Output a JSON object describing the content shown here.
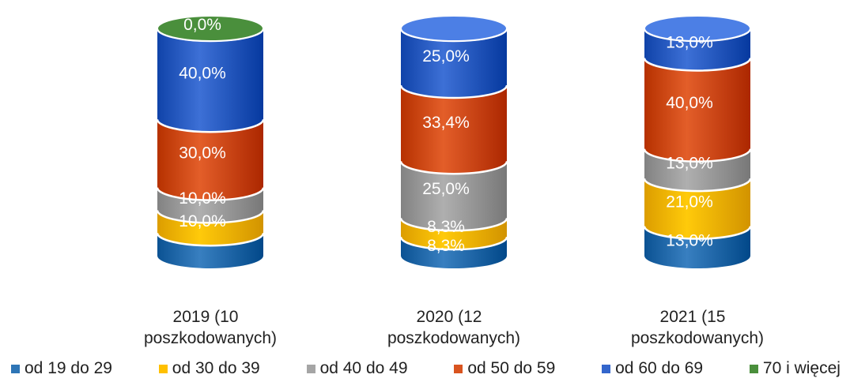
{
  "chart_data": {
    "type": "bar",
    "stacked": true,
    "percent": true,
    "categories": [
      "2019 (10 poszkodowanych)",
      "2020 (12 poszkodowanych)",
      "2021 (15 poszkodowanych)"
    ],
    "category_lines": [
      [
        "2019 (10",
        "poszkodowanych)"
      ],
      [
        "2020 (12",
        "poszkodowanych)"
      ],
      [
        "2021 (15",
        "poszkodowanych)"
      ]
    ],
    "series": [
      {
        "name": "od 19 do 29",
        "color": "#2e75b6",
        "values": [
          10.0,
          8.3,
          13.0
        ],
        "labels": [
          "",
          "8,3%",
          "13,0%"
        ]
      },
      {
        "name": "od 30 do 39",
        "color": "#ffc000",
        "values": [
          10.0,
          8.3,
          21.0
        ],
        "labels": [
          "10,0%",
          "8,3%",
          "21,0%"
        ]
      },
      {
        "name": "od 40 do 49",
        "color": "#a5a5a5",
        "values": [
          10.0,
          25.0,
          13.0
        ],
        "labels": [
          "10,0%",
          "25,0%",
          "13,0%"
        ]
      },
      {
        "name": "od 50 do 59",
        "color": "#d9541f",
        "values": [
          30.0,
          33.4,
          40.0
        ],
        "labels": [
          "30,0%",
          "33,4%",
          "40,0%"
        ]
      },
      {
        "name": "od 60 do 69",
        "color": "#3366cc",
        "values": [
          40.0,
          25.0,
          13.0
        ],
        "labels": [
          "40,0%",
          "25,0%",
          "13,0%"
        ]
      },
      {
        "name": "70 i więcej",
        "color": "#4a8f3c",
        "values": [
          0.0,
          0.0,
          0.0
        ],
        "labels": [
          "0,0%",
          "",
          ""
        ]
      }
    ],
    "legend_position": "bottom",
    "grid": false
  }
}
